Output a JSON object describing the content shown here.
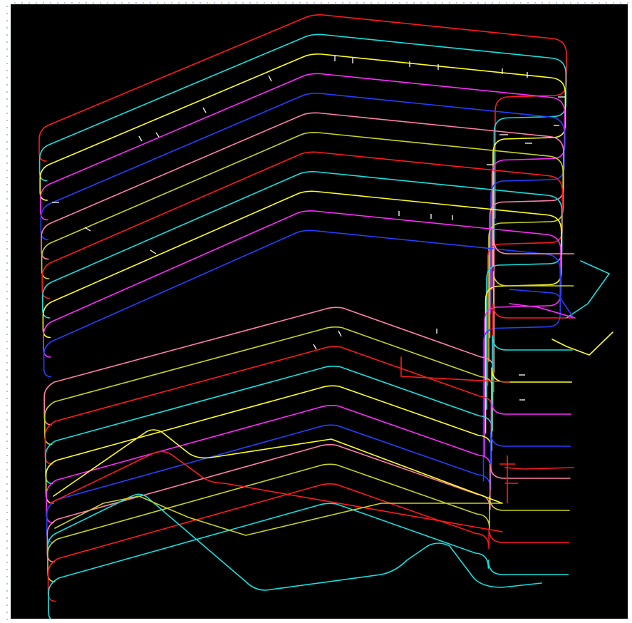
{
  "diagram": {
    "background": "#000000",
    "palette": [
      "#ff1b1b",
      "#16e0e0",
      "#ffff1e",
      "#ff2bff",
      "#2540ff",
      "#ff7fa8",
      "#c8d21e"
    ],
    "trace_count": 23,
    "description_text": ""
  }
}
